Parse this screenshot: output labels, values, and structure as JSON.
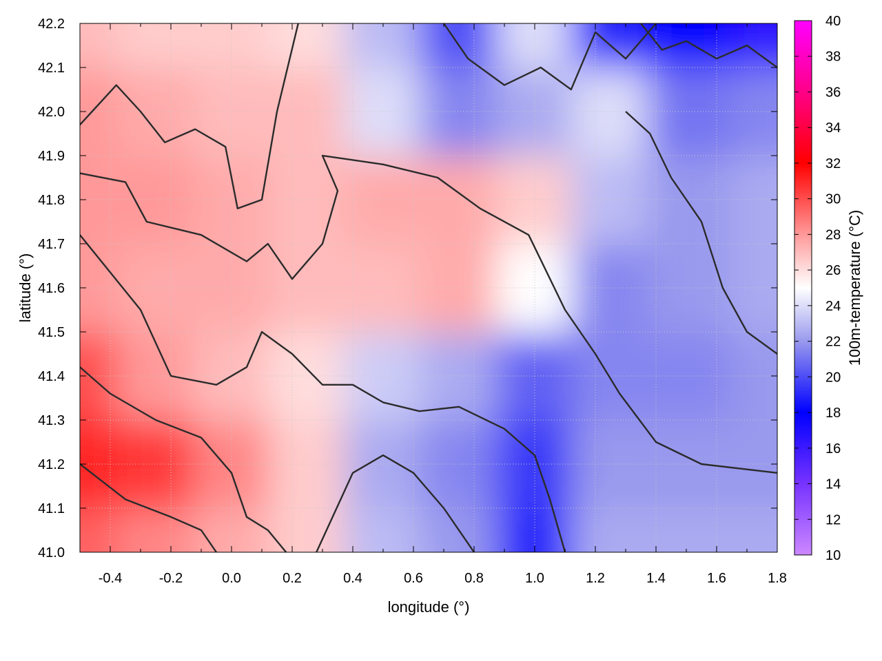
{
  "chart_data": {
    "type": "heatmap",
    "xlabel": "longitude (°)",
    "ylabel": "latitude (°)",
    "xlim": [
      -0.5,
      1.8
    ],
    "ylim": [
      41.0,
      42.2
    ],
    "xticks": [
      -0.4,
      -0.2,
      0.0,
      0.2,
      0.4,
      0.6,
      0.8,
      1.0,
      1.2,
      1.4,
      1.6,
      1.8
    ],
    "yticks": [
      41.0,
      41.1,
      41.2,
      41.3,
      41.4,
      41.5,
      41.6,
      41.7,
      41.8,
      41.9,
      42.0,
      42.1,
      42.2
    ],
    "xtick_labels": [
      "-0.4",
      "-0.2",
      "0.0",
      "0.2",
      "0.4",
      "0.6",
      "0.8",
      "1.0",
      "1.2",
      "1.4",
      "1.6",
      "1.8"
    ],
    "ytick_labels": [
      "41.0",
      "41.1",
      "41.2",
      "41.3",
      "41.4",
      "41.5",
      "41.6",
      "41.7",
      "41.8",
      "41.9",
      "42.0",
      "42.1",
      "42.2"
    ],
    "grid": true,
    "colorbar": {
      "label": "100m-temperature (°C)",
      "range": [
        10,
        40
      ],
      "ticks": [
        10,
        12,
        14,
        16,
        18,
        20,
        22,
        24,
        26,
        28,
        30,
        32,
        34,
        36,
        38,
        40
      ],
      "tick_labels": [
        "10",
        "12",
        "14",
        "16",
        "18",
        "20",
        "22",
        "24",
        "26",
        "28",
        "30",
        "32",
        "34",
        "36",
        "38",
        "40"
      ],
      "colormap": [
        {
          "value": 10,
          "color": "#cc88ff"
        },
        {
          "value": 14,
          "color": "#7733ff"
        },
        {
          "value": 18,
          "color": "#0000ff"
        },
        {
          "value": 22,
          "color": "#9999ee"
        },
        {
          "value": 25,
          "color": "#ffffff"
        },
        {
          "value": 28,
          "color": "#ff9999"
        },
        {
          "value": 32,
          "color": "#ff0000"
        },
        {
          "value": 36,
          "color": "#ff0088"
        },
        {
          "value": 40,
          "color": "#ff00ff"
        }
      ]
    },
    "field_samples": {
      "x": [
        -0.5,
        -0.25,
        0.0,
        0.25,
        0.5,
        0.75,
        1.0,
        1.25,
        1.5,
        1.8
      ],
      "y": [
        41.0,
        41.2,
        41.4,
        41.6,
        41.8,
        42.0,
        42.2
      ],
      "z": [
        [
          29.5,
          28.5,
          27.5,
          26.5,
          23.0,
          22.0,
          19.0,
          22.5,
          22.5,
          22.5
        ],
        [
          31.0,
          30.5,
          28.5,
          26.5,
          22.5,
          21.5,
          19.5,
          22.0,
          22.0,
          22.0
        ],
        [
          30.0,
          28.0,
          27.0,
          26.0,
          23.5,
          22.5,
          20.5,
          21.5,
          21.5,
          22.0
        ],
        [
          28.0,
          27.5,
          27.5,
          27.0,
          27.0,
          27.5,
          25.0,
          21.5,
          22.0,
          22.5
        ],
        [
          28.0,
          28.0,
          27.5,
          27.0,
          27.5,
          27.5,
          26.5,
          23.0,
          22.0,
          22.5
        ],
        [
          28.0,
          27.5,
          27.0,
          27.0,
          24.0,
          21.5,
          22.5,
          24.0,
          21.0,
          21.5
        ],
        [
          27.0,
          26.5,
          26.5,
          26.0,
          23.0,
          20.0,
          24.0,
          19.0,
          18.0,
          16.5
        ]
      ]
    },
    "contour_lines": [
      [
        [
          -0.5,
          41.97
        ],
        [
          -0.38,
          42.06
        ],
        [
          -0.3,
          42.0
        ],
        [
          -0.22,
          41.93
        ],
        [
          -0.12,
          41.96
        ],
        [
          -0.02,
          41.92
        ],
        [
          0.02,
          41.78
        ],
        [
          0.1,
          41.8
        ],
        [
          0.15,
          42.0
        ],
        [
          0.22,
          42.2
        ]
      ],
      [
        [
          -0.5,
          41.86
        ],
        [
          -0.35,
          41.84
        ],
        [
          -0.28,
          41.75
        ],
        [
          -0.1,
          41.72
        ],
        [
          0.05,
          41.66
        ],
        [
          0.12,
          41.7
        ],
        [
          0.2,
          41.62
        ],
        [
          0.3,
          41.7
        ],
        [
          0.35,
          41.82
        ],
        [
          0.3,
          41.9
        ],
        [
          0.5,
          41.88
        ],
        [
          0.68,
          41.85
        ],
        [
          0.82,
          41.78
        ],
        [
          0.98,
          41.72
        ],
        [
          1.1,
          41.55
        ],
        [
          1.2,
          41.45
        ],
        [
          1.28,
          41.36
        ],
        [
          1.4,
          41.25
        ],
        [
          1.55,
          41.2
        ],
        [
          1.8,
          41.18
        ]
      ],
      [
        [
          -0.5,
          41.72
        ],
        [
          -0.3,
          41.55
        ],
        [
          -0.2,
          41.4
        ],
        [
          -0.05,
          41.38
        ],
        [
          0.05,
          41.42
        ],
        [
          0.1,
          41.5
        ],
        [
          0.2,
          41.45
        ],
        [
          0.3,
          41.38
        ],
        [
          0.4,
          41.38
        ],
        [
          0.5,
          41.34
        ],
        [
          0.62,
          41.32
        ],
        [
          0.75,
          41.33
        ],
        [
          0.9,
          41.28
        ],
        [
          1.0,
          41.22
        ],
        [
          1.05,
          41.12
        ],
        [
          1.1,
          41.0
        ]
      ],
      [
        [
          -0.5,
          41.42
        ],
        [
          -0.4,
          41.36
        ],
        [
          -0.25,
          41.3
        ],
        [
          -0.1,
          41.26
        ],
        [
          0.0,
          41.18
        ],
        [
          0.05,
          41.08
        ],
        [
          0.12,
          41.05
        ],
        [
          0.18,
          41.0
        ]
      ],
      [
        [
          -0.5,
          41.2
        ],
        [
          -0.35,
          41.12
        ],
        [
          -0.2,
          41.08
        ],
        [
          -0.1,
          41.05
        ],
        [
          -0.05,
          41.0
        ]
      ],
      [
        [
          0.28,
          41.0
        ],
        [
          0.4,
          41.18
        ],
        [
          0.5,
          41.22
        ],
        [
          0.6,
          41.18
        ],
        [
          0.7,
          41.1
        ],
        [
          0.78,
          41.02
        ],
        [
          0.8,
          41.0
        ]
      ],
      [
        [
          0.7,
          42.2
        ],
        [
          0.78,
          42.12
        ],
        [
          0.9,
          42.06
        ],
        [
          1.02,
          42.1
        ],
        [
          1.12,
          42.05
        ],
        [
          1.2,
          42.18
        ],
        [
          1.3,
          42.12
        ],
        [
          1.4,
          42.2
        ]
      ],
      [
        [
          1.35,
          42.2
        ],
        [
          1.42,
          42.14
        ],
        [
          1.5,
          42.16
        ],
        [
          1.6,
          42.12
        ],
        [
          1.7,
          42.15
        ],
        [
          1.8,
          42.1
        ]
      ],
      [
        [
          1.3,
          42.0
        ],
        [
          1.38,
          41.95
        ],
        [
          1.45,
          41.85
        ],
        [
          1.55,
          41.75
        ],
        [
          1.62,
          41.6
        ],
        [
          1.7,
          41.5
        ],
        [
          1.8,
          41.45
        ]
      ]
    ]
  }
}
